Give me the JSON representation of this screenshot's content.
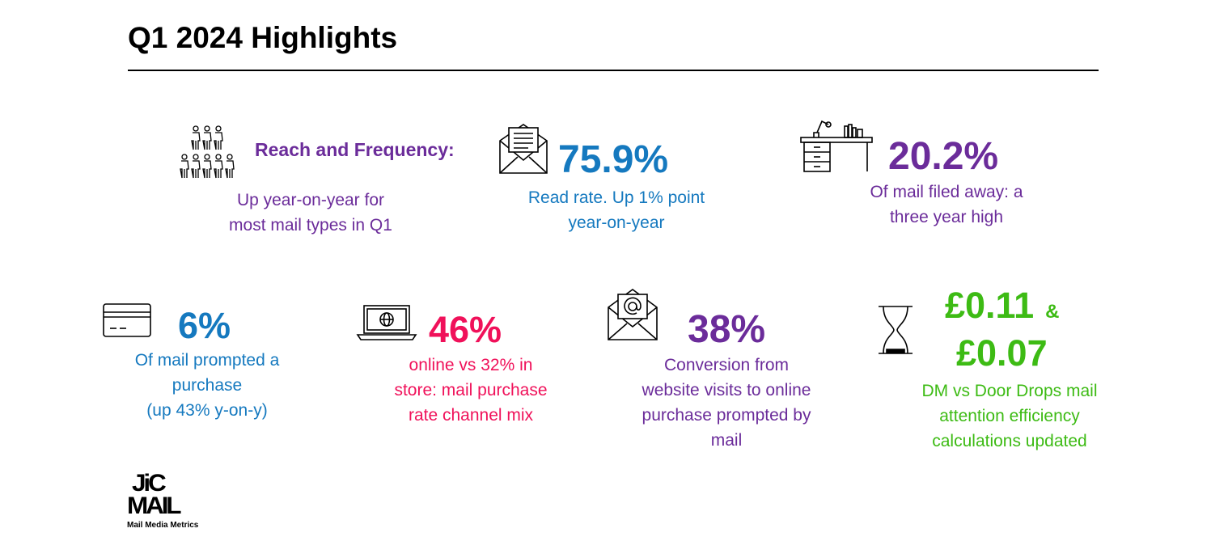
{
  "title": "Q1 2024 Highlights",
  "stats": [
    {
      "id": "reach",
      "headline": "Reach and Frequency:",
      "lines": [
        "Up year-on-year for",
        "most mail types in Q1"
      ],
      "icon": "people-icon",
      "color": "#6B2C9A"
    },
    {
      "id": "read-rate",
      "value": "75.9%",
      "lines": [
        "Read rate. Up 1% point",
        "year-on-year"
      ],
      "icon": "letter-envelope-icon",
      "color": "#1579BF"
    },
    {
      "id": "filed",
      "value": "20.2%",
      "lines": [
        "Of mail filed away: a",
        "three year high"
      ],
      "icon": "desk-icon",
      "color": "#6B2C9A"
    },
    {
      "id": "purchase",
      "value": "6%",
      "lines": [
        "Of mail prompted a",
        "purchase",
        "(up 43% y-on-y)"
      ],
      "icon": "credit-card-icon",
      "color": "#1579BF"
    },
    {
      "id": "online",
      "value": "46%",
      "lines": [
        "online vs 32% in",
        "store: mail purchase",
        "rate channel mix"
      ],
      "icon": "laptop-globe-icon",
      "color": "#F0115A"
    },
    {
      "id": "conversion",
      "value": "38%",
      "lines": [
        "Conversion from",
        "website visits to online",
        "purchase prompted by",
        "mail"
      ],
      "icon": "email-at-icon",
      "color": "#6B2C9A"
    },
    {
      "id": "efficiency",
      "value_1": "£0.11",
      "amp": "&",
      "value_2": "£0.07",
      "lines": [
        "DM vs Door Drops mail",
        "attention efficiency",
        "calculations updated"
      ],
      "icon": "hourglass-icon",
      "color": "#3DBB14"
    }
  ],
  "logo": {
    "line1": "JiC",
    "line2": "MAIL",
    "tagline": "Mail Media Metrics"
  }
}
